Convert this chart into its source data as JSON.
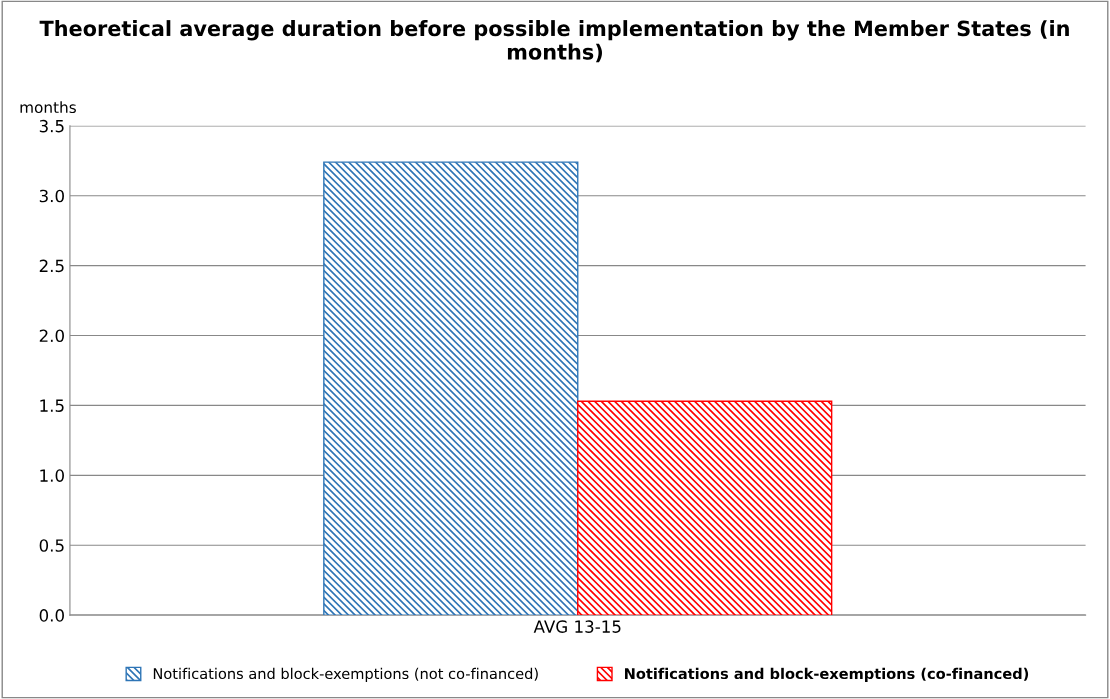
{
  "chart_data": {
    "type": "bar",
    "title": "Theoretical average duration before possible implementation by the Member States (in months)",
    "ylabel": "months",
    "categories": [
      "AVG 13-15"
    ],
    "series": [
      {
        "name": "Notifications and block-exemptions (not co-financed)",
        "color": "#2e75b6",
        "values": [
          3.24
        ]
      },
      {
        "name": "Notifications and block-exemptions (co-financed)",
        "color": "#ff0000",
        "values": [
          1.53
        ]
      }
    ],
    "ylim": [
      0,
      3.5
    ],
    "yticks": [
      {
        "value": 0,
        "label": "0.0"
      },
      {
        "value": 0.5,
        "label": "0.5"
      },
      {
        "value": 1,
        "label": "1.0"
      },
      {
        "value": 1.5,
        "label": "1.5"
      },
      {
        "value": 2,
        "label": "2.0"
      },
      {
        "value": 2.5,
        "label": "2.5"
      },
      {
        "value": 3,
        "label": "3.0"
      },
      {
        "value": 3.5,
        "label": "3.5"
      }
    ],
    "grid": "y",
    "legend": "bottom"
  }
}
